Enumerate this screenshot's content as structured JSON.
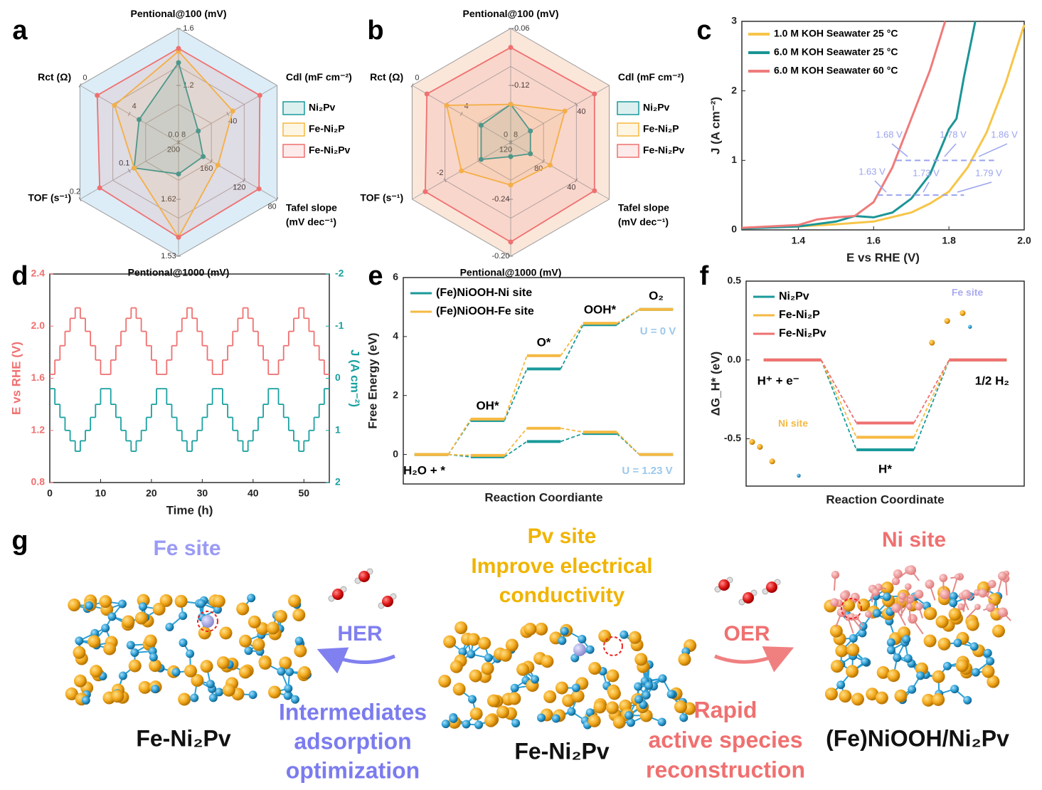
{
  "panel_labels": [
    "a",
    "b",
    "c",
    "d",
    "e",
    "f",
    "g"
  ],
  "chart_data": [
    {
      "type": "radar",
      "axes": [
        {
          "label": [
            "Pentional@100 (mV)"
          ],
          "lim": [
            0.8,
            1.6
          ],
          "ticks": [
            1.2,
            1.6
          ]
        },
        {
          "label": [
            "Cdl (mF cm⁻²)"
          ],
          "lim": [
            0,
            80
          ],
          "ticks": [
            40
          ]
        },
        {
          "label": [
            "Tafel slope",
            "(mV dec⁻¹)"
          ],
          "lim": [
            200,
            80
          ],
          "ticks": [
            200,
            160,
            120,
            80
          ]
        },
        {
          "label": [
            "Pentional@1000 (mV)"
          ],
          "lim": [
            1.71,
            1.53
          ],
          "ticks": [
            1.62,
            1.53
          ]
        },
        {
          "label": [
            "TOF (s⁻¹)"
          ],
          "lim": [
            0,
            0.2
          ],
          "ticks": [
            {
              "value": 0,
              "label": "0.0"
            },
            0.1,
            0.2
          ]
        },
        {
          "label": [
            "Rct (Ω)"
          ],
          "lim": [
            8,
            0
          ],
          "ticks": [
            8,
            4,
            0
          ]
        }
      ],
      "background": "#dcedf7",
      "series": [
        {
          "name": "Ni₂Pv",
          "color": "#1a9a9a",
          "values": [
            1.36,
            16,
            170,
            1.66,
            0.09,
            4.8
          ]
        },
        {
          "name": "Fe-Ni₂P",
          "color": "#f5b942",
          "values": [
            1.44,
            44,
            152,
            1.56,
            0.09,
            2.8
          ]
        },
        {
          "name": "Fe-Ni₂Pv",
          "color": "#ef7070",
          "values": [
            1.46,
            66,
            102,
            1.56,
            0.16,
            1.4
          ]
        }
      ],
      "legend": "right"
    },
    {
      "type": "radar",
      "axes": [
        {
          "label": [
            "Pentional@100 (mV)"
          ],
          "lim": [
            -0.18,
            -0.06
          ],
          "ticks": [
            -0.12,
            -0.06
          ]
        },
        {
          "label": [
            "Cdl (mF cm⁻²)"
          ],
          "lim": [
            0,
            60
          ],
          "ticks": [
            40
          ]
        },
        {
          "label": [
            "Tafel slope",
            "(mV dec⁻¹)"
          ],
          "lim": [
            120,
            0
          ],
          "ticks": [
            120,
            80,
            40
          ]
        },
        {
          "label": [
            "Pentional@1000 (mV)"
          ],
          "lim": [
            -0.28,
            -0.2
          ],
          "ticks": [
            -0.24,
            {
              "value": -0.2,
              "label": "-0.20"
            }
          ]
        },
        {
          "label": [
            "TOF (s⁻¹)"
          ],
          "lim": [
            0,
            -3
          ],
          "ticks": [
            0,
            -2
          ]
        },
        {
          "label": [
            "Rct (Ω)"
          ],
          "lim": [
            8,
            0
          ],
          "ticks": [
            8,
            4,
            0
          ]
        }
      ],
      "background": "#fbe6da",
      "series": [
        {
          "name": "Ni₂Pv",
          "color": "#1a9a9a",
          "values": [
            -0.14,
            12,
            96,
            -0.27,
            -0.9,
            5.6
          ]
        },
        {
          "name": "Fe-Ni₂P",
          "color": "#f5b942",
          "values": [
            -0.14,
            33,
            72,
            -0.25,
            -1.5,
            2.8
          ]
        },
        {
          "name": "Fe-Ni₂Pv",
          "color": "#ef7070",
          "values": [
            -0.08,
            51,
            18,
            -0.21,
            -2.6,
            1.2
          ]
        }
      ],
      "legend": "right"
    },
    {
      "type": "line",
      "xlabel": "E vs RHE (V)",
      "ylabel": "J (A cm⁻²)",
      "xlim": [
        1.25,
        2.0
      ],
      "ylim": [
        0,
        3
      ],
      "xticks": [
        1.4,
        1.6,
        1.8,
        {
          "value": 2,
          "label": "2.0"
        }
      ],
      "yticks": [
        0,
        1,
        2,
        3
      ],
      "series": [
        {
          "name": "1.0 M KOH Seawater 25 °C",
          "color": "#f7c548",
          "x": [
            1.25,
            1.4,
            1.5,
            1.6,
            1.7,
            1.75,
            1.8,
            1.85,
            1.9,
            1.95,
            2.0
          ],
          "values": [
            0.03,
            0.05,
            0.08,
            0.12,
            0.25,
            0.38,
            0.55,
            0.9,
            1.4,
            2.1,
            2.95
          ]
        },
        {
          "name": "6.0 M KOH Seawater 25 °C",
          "color": "#1b9595",
          "x": [
            1.25,
            1.4,
            1.5,
            1.55,
            1.6,
            1.65,
            1.7,
            1.75,
            1.8,
            1.82,
            1.84,
            1.87
          ],
          "values": [
            0.02,
            0.05,
            0.12,
            0.2,
            0.18,
            0.25,
            0.45,
            0.8,
            1.45,
            1.6,
            2.2,
            3.0
          ]
        },
        {
          "name": "6.0 M KOH Seawater 60 °C",
          "color": "#ef7b7b",
          "x": [
            1.25,
            1.4,
            1.45,
            1.5,
            1.55,
            1.6,
            1.65,
            1.7,
            1.75,
            1.79
          ],
          "values": [
            0.03,
            0.07,
            0.15,
            0.18,
            0.2,
            0.4,
            0.9,
            1.6,
            2.3,
            3.0
          ]
        }
      ],
      "hlines": [
        1,
        0.5
      ],
      "annotations": [
        "1.68 V",
        "1.78 V",
        "1.86 V",
        "1.63 V",
        "1.73 V",
        "1.79 V"
      ],
      "legend": "upper left"
    },
    {
      "type": "step",
      "xlabel": "Time (h)",
      "ylabel": "E vs RHE (V)",
      "y2label": "J (A cm⁻²)",
      "xlim": [
        0,
        55
      ],
      "ylim": [
        0.8,
        2.4
      ],
      "y2lim": [
        2,
        -2
      ],
      "xticks": [
        0,
        10,
        20,
        30,
        40,
        50
      ],
      "yticks": [
        0.8,
        1.2,
        1.6,
        {
          "value": 2,
          "label": "2.0"
        },
        2.4
      ],
      "y2ticks": [
        -2,
        -1,
        0,
        1,
        2
      ],
      "x": [
        0,
        1,
        2,
        3,
        4,
        5,
        6,
        7,
        8,
        9,
        10,
        11,
        12,
        13,
        14,
        15,
        16,
        17,
        18,
        19,
        20,
        21,
        22,
        23,
        24,
        25,
        26,
        27,
        28,
        29,
        30,
        31,
        32,
        33,
        34,
        35,
        36,
        37,
        38,
        39,
        40,
        41,
        42,
        43,
        44,
        45,
        46,
        47,
        48,
        49,
        50,
        51,
        52,
        53,
        54
      ],
      "series": [
        {
          "name": "E",
          "color": "#ef7070",
          "values": [
            1.63,
            1.74,
            1.85,
            1.96,
            2.06,
            2.14,
            2.06,
            1.96,
            1.85,
            1.74,
            1.63,
            1.63,
            1.74,
            1.85,
            1.96,
            2.06,
            2.14,
            2.06,
            1.96,
            1.85,
            1.74,
            1.63,
            1.63,
            1.74,
            1.85,
            1.96,
            2.06,
            2.14,
            2.06,
            1.96,
            1.85,
            1.74,
            1.63,
            1.63,
            1.74,
            1.85,
            1.96,
            2.06,
            2.14,
            2.06,
            1.96,
            1.85,
            1.74,
            1.63,
            1.63,
            1.74,
            1.85,
            1.96,
            2.06,
            2.14,
            2.06,
            1.96,
            1.85,
            1.74,
            1.63
          ]
        },
        {
          "name": "J",
          "color": "#1ba0a0",
          "axis": "y2",
          "values": [
            0.2,
            0.5,
            0.75,
            1.0,
            1.2,
            1.4,
            1.2,
            1.0,
            0.75,
            0.5,
            0.2,
            0.2,
            0.5,
            0.75,
            1.0,
            1.2,
            1.4,
            1.2,
            1.0,
            0.75,
            0.5,
            0.2,
            0.2,
            0.5,
            0.75,
            1.0,
            1.2,
            1.4,
            1.2,
            1.0,
            0.75,
            0.5,
            0.2,
            0.2,
            0.5,
            0.75,
            1.0,
            1.2,
            1.4,
            1.2,
            1.0,
            0.75,
            0.5,
            0.2,
            0.2,
            0.5,
            0.75,
            1.0,
            1.2,
            1.4,
            1.2,
            1.0,
            0.75,
            0.5,
            0.2
          ]
        }
      ]
    },
    {
      "type": "energy",
      "xlabel": "Reaction Coordiante",
      "ylabel": "Free Energy (eV)",
      "ylim": [
        -1,
        6
      ],
      "yticks": [
        0,
        2,
        4,
        6
      ],
      "categories": [
        "H₂O + *",
        "OH*",
        "O*",
        "OOH*",
        "O₂"
      ],
      "series": [
        {
          "name": "(Fe)NiOOH-Ni site",
          "color": "#1a9a9a",
          "values": [
            0,
            1.15,
            2.9,
            4.4,
            4.92
          ],
          "values_u": [
            0,
            -0.08,
            0.44,
            0.71,
            0
          ]
        },
        {
          "name": "(Fe)NiOOH-Fe site",
          "color": "#f5b942",
          "values": [
            0,
            1.2,
            3.35,
            4.45,
            4.92
          ],
          "values_u": [
            0,
            -0.03,
            0.89,
            0.76,
            0
          ]
        }
      ],
      "annotations": [
        "U = 0 V",
        "U = 1.23 V"
      ],
      "legend": "upper left"
    },
    {
      "type": "energy",
      "xlabel": "Reaction Coordinate",
      "ylabel": "ΔG_H* (eV)",
      "ylim": [
        -0.8,
        0.5
      ],
      "yticks": [
        -0.5,
        {
          "value": 0,
          "label": "0.0"
        },
        0.5
      ],
      "categories": [
        "H⁺ + e⁻",
        "H*",
        "1/2 H₂"
      ],
      "series": [
        {
          "name": "Ni₂Pv",
          "color": "#1a9a9a",
          "values": [
            0,
            -0.57,
            0
          ]
        },
        {
          "name": "Fe-Ni₂P",
          "color": "#f5b942",
          "values": [
            0,
            -0.49,
            0
          ]
        },
        {
          "name": "Fe-Ni₂Pv",
          "color": "#ef7070",
          "values": [
            0,
            -0.4,
            0
          ]
        }
      ],
      "annotations": [
        "Fe site",
        "Ni site"
      ],
      "legend": "upper left"
    }
  ],
  "scheme": {
    "left": {
      "site": "Fe site",
      "name": "Fe-Ni₂Pv"
    },
    "her": {
      "label": "HER",
      "lines": [
        "Intermediates",
        "adsorption",
        "optimization"
      ]
    },
    "center": {
      "site": "Pv site",
      "lines": [
        "Improve electrical",
        "conductivity"
      ],
      "name": "Fe-Ni₂Pv"
    },
    "oer": {
      "label": "OER",
      "lines": [
        "Rapid",
        "active species",
        "reconstruction"
      ]
    },
    "right": {
      "site": "Ni site",
      "name": "(Fe)NiOOH/Ni₂Pv"
    }
  }
}
